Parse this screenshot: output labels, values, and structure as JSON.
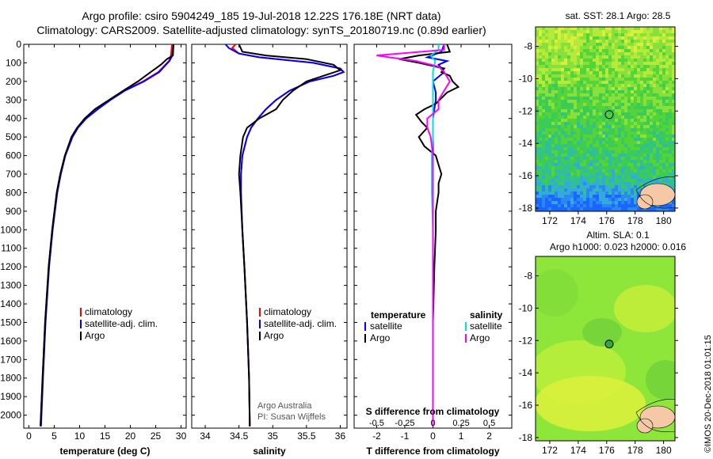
{
  "header": {
    "title_line1": "Argo profile: csiro 5904249_185 19-Jul-2018 12.22S 176.18E (NRT data)",
    "title_line2": "Climatology: CARS2009. Satellite-adjusted climatology: synTS_20180719.nc (0.89d earlier)"
  },
  "maps": {
    "sst_title": "sat. SST: 28.1 Argo: 28.5",
    "sla_title_line1": "Altim. SLA: 0.1",
    "sla_title_line2": "Argo h1000: 0.023 h2000: 0.016",
    "lat_ticks": [
      "-8",
      "-10",
      "-12",
      "-14",
      "-16",
      "-18"
    ],
    "lon_ticks": [
      "172",
      "174",
      "176",
      "178",
      "180"
    ],
    "marker_lon": 176.18,
    "marker_lat": -12.22
  },
  "footer": {
    "stamp": "©IMOS 20-Dec-2018 01:01:15"
  },
  "credits": {
    "line1": "Argo Australia",
    "line2": "PI: Susan Wijffels"
  },
  "colors": {
    "climatology": "#ff0000",
    "satellite": "#0000ff",
    "argo": "#000000",
    "sat_salinity": "#00e0e0",
    "argo_salinity": "#ff00ff"
  },
  "chart_data": [
    {
      "type": "line",
      "name": "temperature-profile",
      "xlabel": "temperature (deg C)",
      "ylabel": "",
      "xlim": [
        -1,
        31
      ],
      "ylim": [
        0,
        2070
      ],
      "x_ticks": [
        "0",
        "5",
        "10",
        "15",
        "20",
        "25",
        "30"
      ],
      "y_ticks": [
        "0",
        "100",
        "200",
        "300",
        "400",
        "500",
        "600",
        "700",
        "800",
        "900",
        "1000",
        "1100",
        "1200",
        "1300",
        "1400",
        "1500",
        "1600",
        "1700",
        "1800",
        "1900",
        "2000"
      ],
      "legend": [
        "climatology",
        "satellite-adj. clim.",
        "Argo"
      ],
      "series": [
        {
          "name": "climatology",
          "depth": [
            0,
            60,
            90,
            150,
            200,
            250,
            300,
            350,
            400,
            450,
            500,
            600,
            700,
            800,
            1000,
            1200,
            1500,
            1800,
            2060
          ],
          "values": [
            28.2,
            28.0,
            27.6,
            25.5,
            22.5,
            18.8,
            16.0,
            13.5,
            11.2,
            9.6,
            8.5,
            7.1,
            6.2,
            5.5,
            4.6,
            3.9,
            3.2,
            2.7,
            2.3
          ]
        },
        {
          "name": "satellite-adj. clim.",
          "depth": [
            0,
            60,
            90,
            150,
            200,
            250,
            300,
            350,
            400,
            450,
            500,
            600,
            700,
            800,
            1000,
            1200,
            1500,
            1800,
            2060
          ],
          "values": [
            28.5,
            28.3,
            27.7,
            25.7,
            22.7,
            18.9,
            16.1,
            13.6,
            11.3,
            9.7,
            8.6,
            7.2,
            6.3,
            5.6,
            4.7,
            4.0,
            3.3,
            2.8,
            2.4
          ]
        },
        {
          "name": "Argo",
          "depth": [
            0,
            60,
            80,
            110,
            150,
            200,
            250,
            300,
            350,
            400,
            450,
            500,
            600,
            700,
            800,
            1000,
            1200,
            1500,
            1800,
            2060
          ],
          "values": [
            28.5,
            28.4,
            27.2,
            26.0,
            24.0,
            21.5,
            18.6,
            15.8,
            13.0,
            11.0,
            9.5,
            8.4,
            7.1,
            6.2,
            5.5,
            4.6,
            3.9,
            3.2,
            2.7,
            2.3
          ]
        }
      ]
    },
    {
      "type": "line",
      "name": "salinity-profile",
      "xlabel": "salinity",
      "ylabel": "",
      "xlim": [
        33.8,
        36.1
      ],
      "ylim": [
        0,
        2070
      ],
      "x_ticks": [
        "34",
        "34.5",
        "35",
        "35.5",
        "36"
      ],
      "legend": [
        "climatology",
        "satellite-adj. clim.",
        "Argo"
      ],
      "series": [
        {
          "name": "climatology",
          "depth": [
            0,
            20,
            50,
            70,
            100,
            130,
            150,
            170,
            200,
            250,
            300,
            350,
            400,
            450,
            500,
            600,
            700,
            800,
            1000,
            1200,
            1500,
            1800,
            2060
          ],
          "values": [
            34.45,
            34.4,
            34.5,
            34.8,
            35.6,
            36.0,
            36.05,
            35.9,
            35.55,
            35.25,
            35.05,
            34.9,
            34.78,
            34.68,
            34.62,
            34.55,
            34.53,
            34.53,
            34.55,
            34.58,
            34.62,
            34.65,
            34.66
          ]
        },
        {
          "name": "satellite-adj. clim.",
          "depth": [
            0,
            20,
            50,
            70,
            100,
            130,
            150,
            170,
            200,
            250,
            300,
            350,
            400,
            450,
            500,
            600,
            700,
            800,
            1000,
            1200,
            1500,
            1800,
            2060
          ],
          "values": [
            34.3,
            34.35,
            34.5,
            34.8,
            35.6,
            36.0,
            36.05,
            35.9,
            35.55,
            35.25,
            35.05,
            34.9,
            34.78,
            34.68,
            34.62,
            34.55,
            34.53,
            34.53,
            34.55,
            34.58,
            34.62,
            34.65,
            34.66
          ]
        },
        {
          "name": "Argo",
          "depth": [
            0,
            40,
            60,
            80,
            110,
            140,
            170,
            200,
            250,
            300,
            350,
            400,
            450,
            500,
            600,
            700,
            800,
            1000,
            1200,
            1500,
            1800,
            2060
          ],
          "values": [
            34.5,
            34.55,
            34.9,
            35.5,
            35.9,
            36.0,
            35.75,
            35.5,
            35.3,
            35.15,
            35.05,
            34.8,
            34.62,
            34.56,
            34.52,
            34.5,
            34.52,
            34.55,
            34.58,
            34.62,
            34.65,
            34.66
          ]
        }
      ]
    },
    {
      "type": "line",
      "name": "difference-profile",
      "xlabel": "T difference from climatology",
      "xlabel2": "S difference from climatology",
      "xlim": [
        -2.8,
        2.8
      ],
      "ylim": [
        0,
        2070
      ],
      "x_ticks": [
        "-2",
        "-1",
        "0",
        "1",
        "2"
      ],
      "s_ticks": [
        "-0.5",
        "-0.25",
        "0",
        "0.25",
        "0.5"
      ],
      "legend_temperature_title": "temperature",
      "legend_salinity_title": "salinity",
      "legend_items": [
        "satellite",
        "Argo"
      ],
      "series": [
        {
          "name": "T satellite",
          "depth": [
            0,
            40,
            70,
            90,
            110,
            150,
            200,
            260,
            300,
            400,
            500,
            600,
            800,
            1000,
            1500,
            2060
          ],
          "values": [
            0.4,
            0.3,
            -0.2,
            0.5,
            0.2,
            0.4,
            0.0,
            0.1,
            0.1,
            0.0,
            0.0,
            0.0,
            0.0,
            0.0,
            0.0,
            0.0
          ]
        },
        {
          "name": "T Argo",
          "depth": [
            0,
            40,
            60,
            80,
            100,
            130,
            150,
            170,
            200,
            230,
            260,
            290,
            320,
            350,
            380,
            420,
            450,
            500,
            550,
            600,
            650,
            700,
            750,
            800,
            900,
            1000,
            1200,
            1500,
            1800,
            2060
          ],
          "values": [
            0.5,
            0.6,
            -0.5,
            -1.2,
            -0.5,
            0.4,
            0.3,
            0.6,
            0.7,
            0.9,
            0.5,
            0.3,
            0.1,
            -0.3,
            -0.6,
            -0.4,
            -0.2,
            -0.5,
            -0.3,
            0.1,
            0.2,
            0.3,
            0.2,
            0.2,
            0.1,
            0.1,
            0.05,
            0.0,
            0.0,
            0.0
          ]
        },
        {
          "name": "S satellite",
          "depth": [
            0,
            30,
            60,
            90,
            150,
            200,
            300,
            400,
            500,
            600,
            800,
            1000,
            1500,
            2060
          ],
          "values": [
            0.05,
            0.05,
            -0.02,
            0.02,
            0.0,
            0.0,
            0.0,
            0.0,
            0.0,
            -0.01,
            -0.01,
            0.0,
            0.0,
            0.0
          ]
        },
        {
          "name": "S Argo",
          "depth": [
            0,
            30,
            60,
            90,
            120,
            150,
            200,
            250,
            300,
            350,
            400,
            450,
            500,
            600,
            800,
            1000,
            1500,
            2060
          ],
          "values": [
            0.1,
            0.1,
            -0.5,
            -0.15,
            0.05,
            0.1,
            0.15,
            0.1,
            0.05,
            0.05,
            -0.05,
            -0.05,
            -0.02,
            0.0,
            0.0,
            0.0,
            0.0,
            0.0
          ]
        }
      ]
    }
  ]
}
